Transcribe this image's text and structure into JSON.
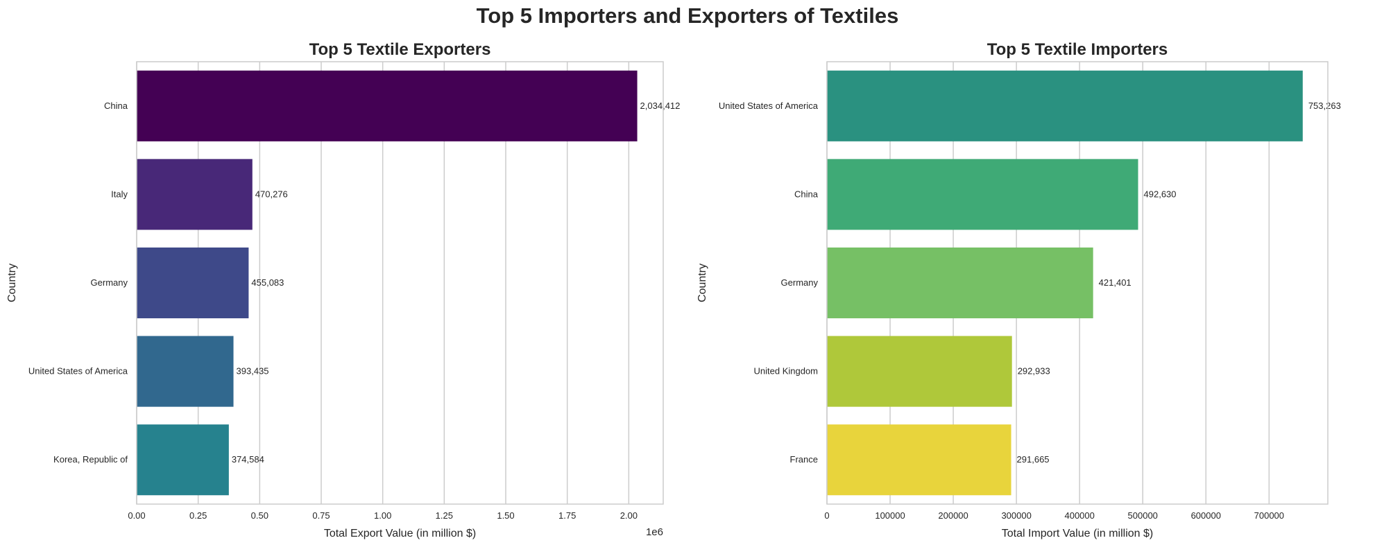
{
  "suptitle": "Top 5 Importers and Exporters of Textiles",
  "chart_data": [
    {
      "type": "bar",
      "orientation": "horizontal",
      "title": "Top 5 Textile Exporters",
      "xlabel": "Total Export Value (in million $)",
      "ylabel": "Country",
      "categories": [
        "China",
        "Italy",
        "Germany",
        "United States of America",
        "Korea, Republic of"
      ],
      "values": [
        2034412,
        470276,
        455083,
        393435,
        374584
      ],
      "data_labels": [
        "2,034,412",
        "470,276",
        "455,083",
        "393,435",
        "374,584"
      ],
      "xlim": [
        0,
        2140000
      ],
      "xticks": [
        0,
        250000,
        500000,
        750000,
        1000000,
        1250000,
        1500000,
        1750000,
        2000000
      ],
      "xtick_labels": [
        "0.00",
        "0.25",
        "0.50",
        "0.75",
        "1.00",
        "1.25",
        "1.50",
        "1.75",
        "2.00"
      ],
      "axis_offset_text": "1e6",
      "colors": [
        "#440154",
        "#482878",
        "#3e4989",
        "#31688e",
        "#26828e"
      ],
      "grid": "x"
    },
    {
      "type": "bar",
      "orientation": "horizontal",
      "title": "Top 5 Textile Importers",
      "xlabel": "Total Import Value (in million $)",
      "ylabel": "Country",
      "categories": [
        "United States of America",
        "China",
        "Germany",
        "United Kingdom",
        "France"
      ],
      "values": [
        753263,
        492630,
        421401,
        292933,
        291665
      ],
      "data_labels": [
        "753,263",
        "492,630",
        "421,401",
        "292,933",
        "291,665"
      ],
      "xlim": [
        0,
        793000
      ],
      "xticks": [
        0,
        100000,
        200000,
        300000,
        400000,
        500000,
        600000,
        700000
      ],
      "xtick_labels": [
        "0",
        "100000",
        "200000",
        "300000",
        "400000",
        "500000",
        "600000",
        "700000"
      ],
      "axis_offset_text": "",
      "colors": [
        "#2a9180",
        "#3faa76",
        "#76c065",
        "#afc83a",
        "#e8d43c"
      ],
      "grid": "x"
    }
  ]
}
